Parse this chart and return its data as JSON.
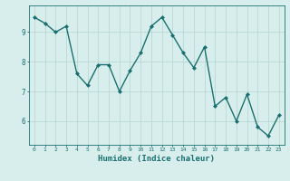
{
  "x": [
    0,
    1,
    2,
    3,
    4,
    5,
    6,
    7,
    8,
    9,
    10,
    11,
    12,
    13,
    14,
    15,
    16,
    17,
    18,
    19,
    20,
    21,
    22,
    23
  ],
  "y": [
    9.5,
    9.3,
    9.0,
    9.2,
    7.6,
    7.2,
    7.9,
    7.9,
    7.0,
    7.7,
    8.3,
    9.2,
    9.5,
    8.9,
    8.3,
    7.8,
    8.5,
    6.5,
    6.8,
    6.0,
    6.9,
    5.8,
    5.5,
    6.2
  ],
  "bg_color": "#d8eeec",
  "line_color": "#1a7070",
  "marker": "D",
  "marker_size": 2.0,
  "line_width": 1.0,
  "xlabel": "Humidex (Indice chaleur)",
  "xlabel_fontsize": 6.5,
  "ylabel_ticks": [
    6,
    7,
    8,
    9
  ],
  "xtick_labels": [
    "0",
    "1",
    "2",
    "3",
    "4",
    "5",
    "6",
    "7",
    "8",
    "9",
    "10",
    "11",
    "12",
    "13",
    "14",
    "15",
    "16",
    "17",
    "18",
    "19",
    "20",
    "21",
    "22",
    "23"
  ],
  "xlim": [
    -0.5,
    23.5
  ],
  "ylim": [
    5.2,
    9.9
  ],
  "grid_color": "#b8d8d4",
  "tick_color": "#1a7070",
  "grid_linewidth": 0.6
}
